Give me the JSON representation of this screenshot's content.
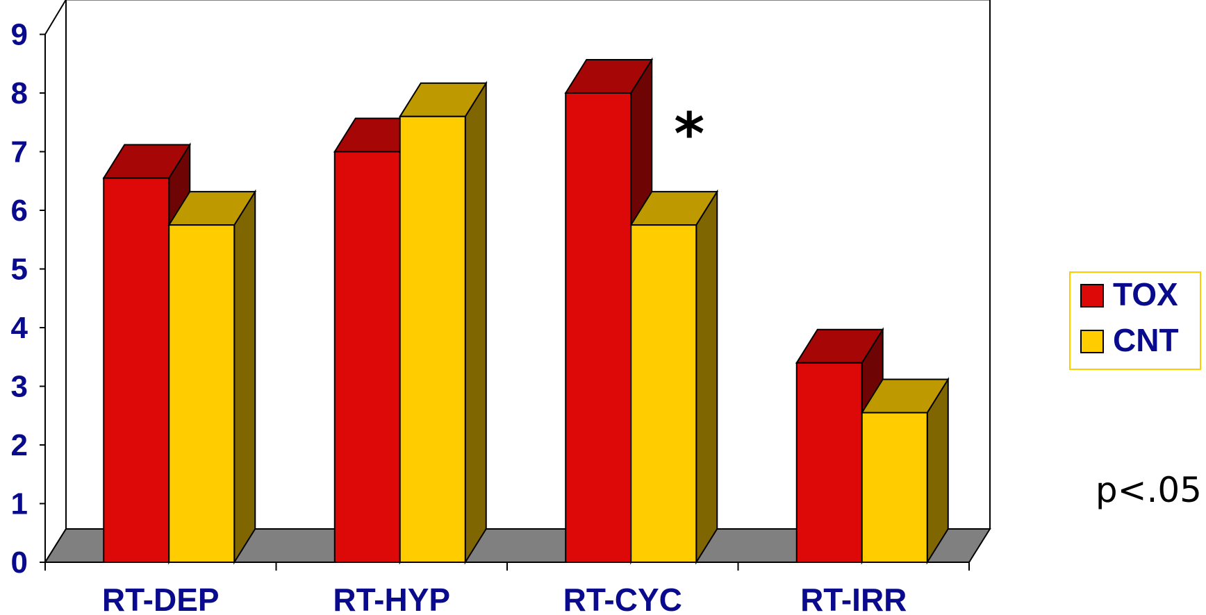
{
  "chart_data": {
    "type": "bar",
    "categories": [
      "RT-DEP",
      "RT-HYP",
      "RT-CYC",
      "RT-IRR"
    ],
    "series": [
      {
        "name": "TOX",
        "values": [
          6.55,
          7.0,
          8.0,
          3.4
        ],
        "color": "#dd0808"
      },
      {
        "name": "CNT",
        "values": [
          5.75,
          7.6,
          5.75,
          2.55
        ],
        "color": "#ffcc00"
      }
    ],
    "ylim": [
      0,
      9
    ],
    "yticks": [
      0,
      1,
      2,
      3,
      4,
      5,
      6,
      7,
      8,
      9
    ],
    "grid": false,
    "legend_position": "right",
    "legend_border_color": "#ffcc00",
    "axis_label_color": "#0a0a8c",
    "floor_color": "#808080",
    "annotations": {
      "significance_marker": "*",
      "significance_category": "RT-CYC",
      "p_value_text": "p<.05"
    }
  }
}
